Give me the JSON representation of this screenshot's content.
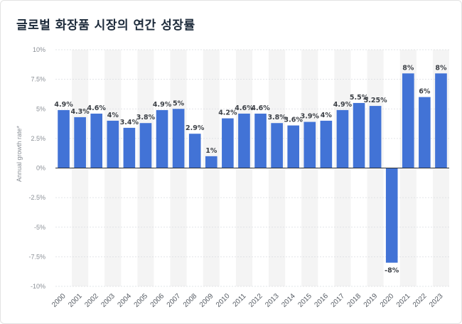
{
  "title": "글로벌 화장품 시장의 연간 성장률",
  "chart_data": {
    "type": "bar",
    "title": "글로벌 화장품 시장의 연간 성장률",
    "ylabel": "Annual growth rate*",
    "xlabel": "",
    "ylim": [
      -10,
      10
    ],
    "yticks": [
      10,
      7.5,
      5,
      2.5,
      0,
      -2.5,
      -5,
      -7.5,
      -10
    ],
    "ytick_labels": [
      "10%",
      "7.5%",
      "5%",
      "2.5%",
      "0%",
      "-2.5%",
      "-5%",
      "-7.5%",
      "-10%"
    ],
    "categories": [
      "2000",
      "2001",
      "2002",
      "2003",
      "2004",
      "2005",
      "2006",
      "2007",
      "2008",
      "2009",
      "2010",
      "2011",
      "2012",
      "2013",
      "2014",
      "2015",
      "2016",
      "2017",
      "2018",
      "2019",
      "2020",
      "2021",
      "2022",
      "2023"
    ],
    "values": [
      4.9,
      4.3,
      4.6,
      4,
      3.4,
      3.8,
      4.9,
      5,
      2.9,
      1,
      4.2,
      4.6,
      4.6,
      3.8,
      3.6,
      3.9,
      4,
      4.9,
      5.5,
      5.25,
      -8,
      8,
      6,
      8
    ],
    "data_labels": [
      "4.9%",
      "4.3%",
      "4.6%",
      "4%",
      "3.4%",
      "3.8%",
      "4.9%",
      "5%",
      "2.9%",
      "1%",
      "4.2%",
      "4.6%",
      "4.6%",
      "3.8%",
      "3.6%",
      "3.9%",
      "4%",
      "4.9%",
      "5.5%",
      "5.25%",
      "-8%",
      "8%",
      "6%",
      "8%"
    ],
    "bar_color": "#4273d6",
    "band_color": "#f4f4f4",
    "grid": true
  }
}
